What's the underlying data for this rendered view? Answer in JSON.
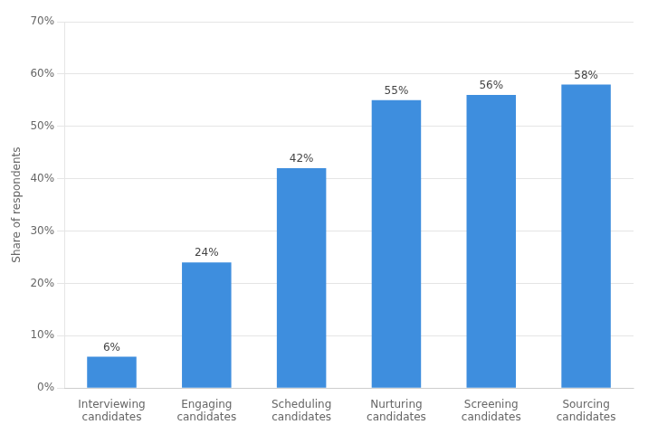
{
  "chart_data": {
    "type": "bar",
    "categories": [
      "Interviewing\ncandidates",
      "Engaging\ncandidates",
      "Scheduling\ncandidates",
      "Nurturing\ncandidates",
      "Screening\ncandidates",
      "Sourcing\ncandidates"
    ],
    "values": [
      6,
      24,
      42,
      55,
      56,
      58
    ],
    "value_labels": [
      "6%",
      "24%",
      "42%",
      "55%",
      "56%",
      "58%"
    ],
    "data_labels": true,
    "color": "#3E8EDE",
    "ylabel": "Share of respondents",
    "ylim": [
      0,
      70
    ],
    "yticks": [
      {
        "value": 0,
        "label": "0%"
      },
      {
        "value": 10,
        "label": "10%"
      },
      {
        "value": 20,
        "label": "20%"
      },
      {
        "value": 30,
        "label": "30%"
      },
      {
        "value": 40,
        "label": "40%"
      },
      {
        "value": 50,
        "label": "50%"
      },
      {
        "value": 60,
        "label": "60%"
      },
      {
        "value": 70,
        "label": "70%"
      }
    ],
    "grid": true
  }
}
